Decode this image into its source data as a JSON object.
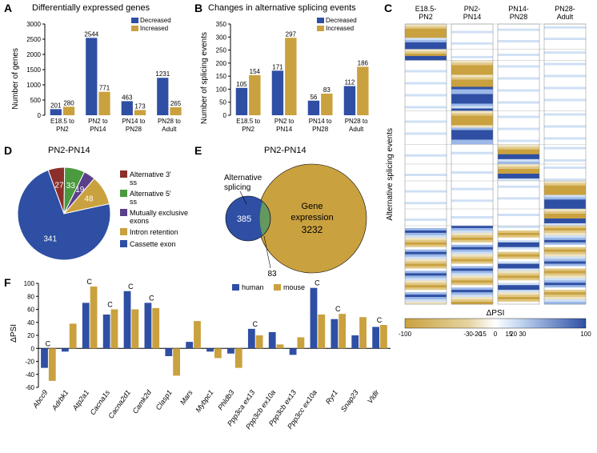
{
  "colors": {
    "blue": "#2e4fa3",
    "gold": "#caa13f",
    "darkred": "#8b2f2a",
    "green": "#4a9b3f",
    "purple": "#5a3f8a",
    "white": "#ffffff",
    "black": "#000000",
    "grey": "#888888"
  },
  "panelA": {
    "label": "A",
    "title": "Differentially expressed genes",
    "ylabel": "Number of genes",
    "categories": [
      "E18.5 to PN2",
      "PN2 to PN14",
      "PN14 to PN28",
      "PN28 to Adult"
    ],
    "decreased": [
      201,
      2544,
      463,
      1231
    ],
    "increased": [
      280,
      771,
      173,
      265
    ],
    "ylim": [
      0,
      3000
    ],
    "yticks": [
      0,
      500,
      1000,
      1500,
      2000,
      2500,
      3000
    ],
    "legend": [
      "Decreased",
      "Increased"
    ]
  },
  "panelB": {
    "label": "B",
    "title": "Changes in alternative splicing events",
    "ylabel": "Number of splicing events",
    "categories": [
      "E18.5 to PN2",
      "PN2 to PN14",
      "PN14 to PN28",
      "PN28 to Adult"
    ],
    "decreased": [
      105,
      171,
      56,
      112
    ],
    "increased": [
      154,
      297,
      83,
      186
    ],
    "ylim": [
      0,
      350
    ],
    "yticks": [
      0,
      50,
      100,
      150,
      200,
      250,
      300,
      350
    ],
    "legend": [
      "Decreased",
      "Increased"
    ]
  },
  "panelC": {
    "label": "C",
    "headers": [
      "E18.5-PN2",
      "PN2-PN14",
      "PN14-PN28",
      "PN28-Adult"
    ],
    "ylabel": "Alternative splicing events",
    "colorbar_label": "ΔPSI",
    "colorbar_ticks": [
      -100,
      -30,
      -20,
      -15,
      0,
      15,
      20,
      30,
      100
    ]
  },
  "panelD": {
    "label": "D",
    "title": "PN2-PN14",
    "slices": [
      {
        "label": "Alternative 3' ss",
        "value": 27,
        "color": "#8b2f2a"
      },
      {
        "label": "Alternative 5' ss",
        "value": 33,
        "color": "#4a9b3f"
      },
      {
        "label": "Mutually exclusive exons",
        "value": 19,
        "color": "#5a3f8a"
      },
      {
        "label": "Intron retention",
        "value": 48,
        "color": "#caa13f"
      },
      {
        "label": "Cassette exon",
        "value": 341,
        "color": "#2e4fa3"
      }
    ]
  },
  "panelE": {
    "label": "E",
    "title": "PN2-PN14",
    "left_label": "Alternative splicing",
    "left_value": 385,
    "right_label": "Gene expression",
    "right_value": 3232,
    "overlap": 83
  },
  "panelF": {
    "label": "F",
    "ylabel": "ΔPSI",
    "legend": [
      "human",
      "mouse"
    ],
    "ylim": [
      -60,
      100
    ],
    "yticks": [
      -60,
      -40,
      -20,
      0,
      20,
      40,
      60,
      80,
      100
    ],
    "genes": [
      "Abcc9",
      "Adrbk1",
      "Atp2a1",
      "Cacna1s",
      "Cacna2d1",
      "Camk2d",
      "Clasp1",
      "Mars",
      "Mybpc1",
      "Phldb3",
      "Ppp3ca ex13",
      "Ppp3cb ex10a",
      "Ppp3cb ex13",
      "Ppp3cc ex10a",
      "Ryr1",
      "Snap23",
      "Vldlr"
    ],
    "human": [
      -30,
      -5,
      70,
      52,
      88,
      70,
      -12,
      10,
      -5,
      -8,
      30,
      25,
      -10,
      93,
      45,
      20,
      33
    ],
    "mouse": [
      -50,
      38,
      95,
      60,
      60,
      62,
      -42,
      42,
      -15,
      -30,
      20,
      6,
      17,
      52,
      53,
      48,
      36
    ],
    "c_marks": [
      true,
      false,
      true,
      true,
      true,
      true,
      false,
      false,
      false,
      false,
      true,
      false,
      false,
      true,
      true,
      false,
      true
    ]
  }
}
